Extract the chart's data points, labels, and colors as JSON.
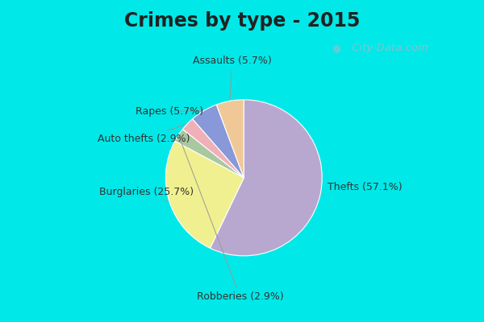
{
  "title": "Crimes by type - 2015",
  "slices": [
    {
      "label": "Thefts (57.1%)",
      "value": 57.1,
      "color": "#b8a8d0"
    },
    {
      "label": "Burglaries (25.7%)",
      "value": 25.7,
      "color": "#f0f090"
    },
    {
      "label": "Robberies (2.9%)",
      "value": 2.9,
      "color": "#a8c8a0"
    },
    {
      "label": "Auto thefts (2.9%)",
      "value": 2.9,
      "color": "#f0b0b8"
    },
    {
      "label": "Rapes (5.7%)",
      "value": 5.7,
      "color": "#8898d8"
    },
    {
      "label": "Assaults (5.7%)",
      "value": 5.7,
      "color": "#f0c898"
    }
  ],
  "bg_cyan_color": "#00e8e8",
  "bg_chart_color": "#d0eade",
  "title_fontsize": 17,
  "label_fontsize": 9,
  "watermark": " City-Data.com",
  "startangle": 90,
  "title_color": "#222222"
}
